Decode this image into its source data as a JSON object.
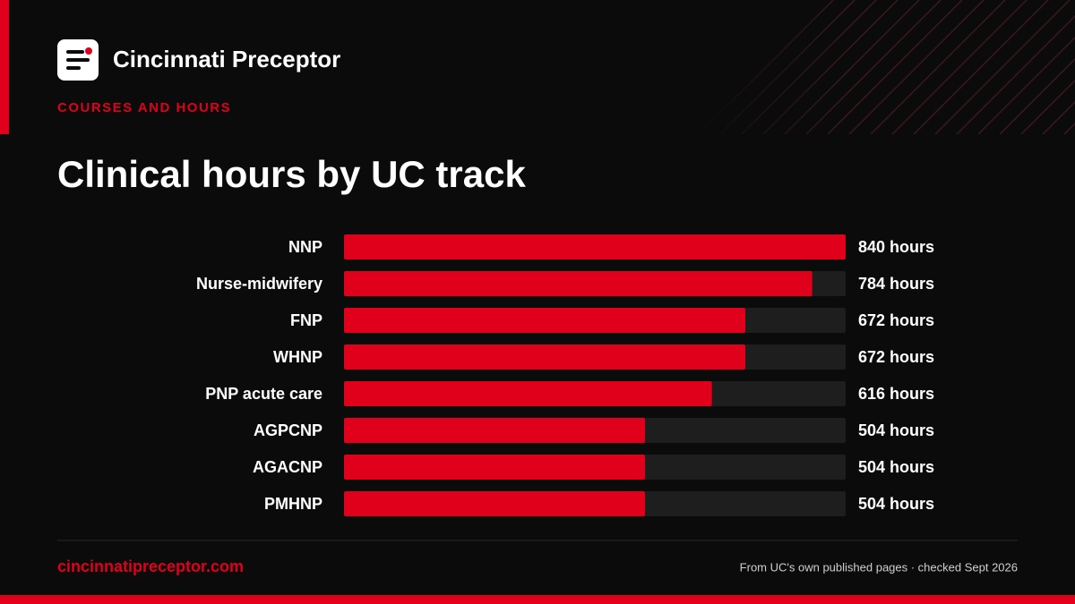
{
  "brand": "Cincinnati Preceptor",
  "section": "COURSES AND HOURS",
  "chart_data": {
    "type": "hbar",
    "title": "Clinical hours by UC track",
    "categories": [
      "NNP",
      "Nurse-midwifery",
      "FNP",
      "WHNP",
      "PNP acute care",
      "AGPCNP",
      "AGACNP",
      "PMHNP"
    ],
    "values": [
      840,
      784,
      672,
      672,
      616,
      504,
      504,
      504
    ],
    "value_labels": [
      "840 hours",
      "784 hours",
      "672 hours",
      "672 hours",
      "616 hours",
      "504 hours",
      "504 hours",
      "504 hours"
    ],
    "color": "#e0001b",
    "track_color": "#1e1e1e",
    "xlim": [
      0,
      840
    ]
  },
  "footer": {
    "url": "cincinnatipreceptor.com",
    "source": "From UC's own published pages · checked Sept 2026"
  }
}
